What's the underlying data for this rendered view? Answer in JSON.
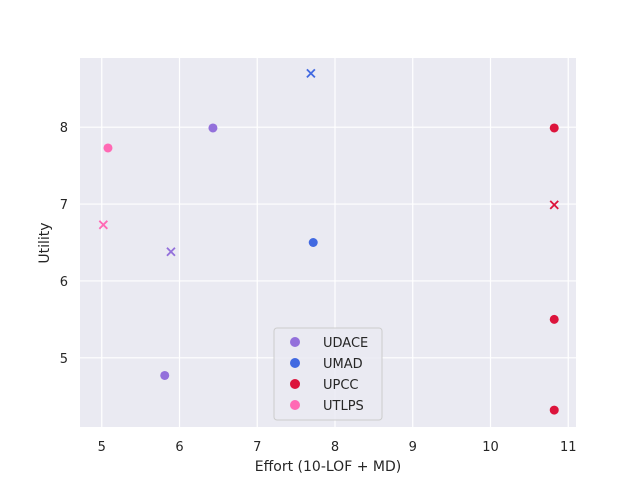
{
  "chart_data": {
    "type": "scatter",
    "xlabel": "Effort (10-LOF + MD)",
    "ylabel": "Utility",
    "xlim": [
      4.72,
      11.1
    ],
    "ylim": [
      4.1,
      8.9
    ],
    "xticks": [
      5,
      6,
      7,
      8,
      9,
      10,
      11
    ],
    "yticks": [
      5,
      6,
      7,
      8
    ],
    "grid": true,
    "legend": {
      "placement": "lower-center"
    },
    "series": [
      {
        "name": "UDACE",
        "color": "#9370DB",
        "points": [
          {
            "x": 6.43,
            "y": 7.99,
            "marker": "circle"
          },
          {
            "x": 5.81,
            "y": 4.77,
            "marker": "circle"
          },
          {
            "x": 5.89,
            "y": 6.38,
            "marker": "x"
          }
        ]
      },
      {
        "name": "UMAD",
        "color": "#4169E1",
        "points": [
          {
            "x": 7.72,
            "y": 6.5,
            "marker": "circle"
          },
          {
            "x": 7.69,
            "y": 8.7,
            "marker": "x"
          }
        ]
      },
      {
        "name": "UPCC",
        "color": "#DC143C",
        "points": [
          {
            "x": 10.82,
            "y": 7.99,
            "marker": "circle"
          },
          {
            "x": 10.82,
            "y": 5.5,
            "marker": "circle"
          },
          {
            "x": 10.82,
            "y": 4.32,
            "marker": "circle"
          },
          {
            "x": 10.82,
            "y": 6.99,
            "marker": "x"
          }
        ]
      },
      {
        "name": "UTLPS",
        "color": "#FF69B4",
        "points": [
          {
            "x": 5.08,
            "y": 7.73,
            "marker": "circle"
          },
          {
            "x": 5.02,
            "y": 6.73,
            "marker": "x"
          }
        ]
      }
    ]
  }
}
